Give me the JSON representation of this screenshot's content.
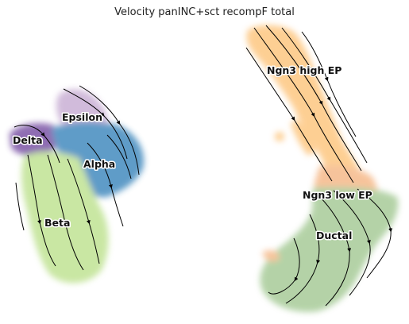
{
  "title": "Velocity panINC+sct recompF total",
  "colors": {
    "delta": "#6a3d9a",
    "epsilon": "#c2a5cf",
    "alpha": "#2c7bb6",
    "beta": "#b8df85",
    "ngn3_high": "#fdbf6f",
    "ngn3_low": "#f4b07a",
    "ductal": "#9bc48a",
    "streamline": "#000000"
  },
  "cluster_labels": {
    "epsilon": "Epsilon",
    "delta": "Delta",
    "alpha": "Alpha",
    "beta": "Beta",
    "ngn3_high": "Ngn3 high EP",
    "ngn3_low": "Ngn3 low EP",
    "ductal": "Ductal"
  }
}
